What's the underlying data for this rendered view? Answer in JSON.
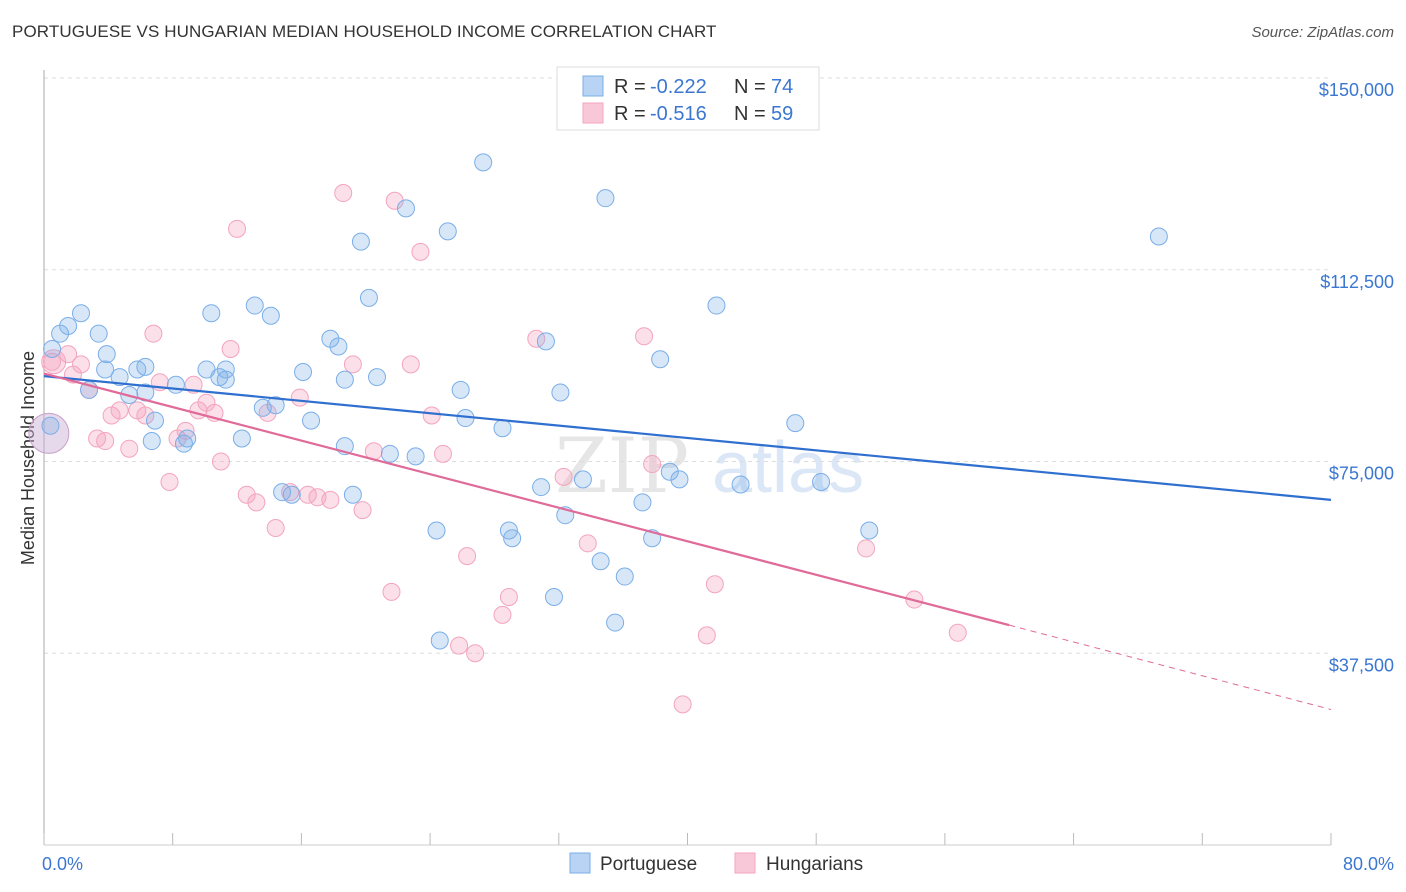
{
  "title": "PORTUGUESE VS HUNGARIAN MEDIAN HOUSEHOLD INCOME CORRELATION CHART",
  "source": "Source: ZipAtlas.com",
  "watermark": {
    "zip": "ZIP",
    "atlas": "atlas"
  },
  "legend": {
    "r_label": "R =",
    "n_label": "N =",
    "portuguese": {
      "r": "-0.222",
      "n": "74"
    },
    "hungarians": {
      "r": "-0.516",
      "n": "59"
    }
  },
  "chart_data": {
    "type": "scatter",
    "title": "PORTUGUESE VS HUNGARIAN MEDIAN HOUSEHOLD INCOME CORRELATION CHART",
    "ylabel": "Median Household Income",
    "xlabel": "",
    "xlim": [
      0,
      80
    ],
    "ylim": [
      0,
      160000
    ],
    "x_tick_labels": [
      "0.0%",
      "80.0%"
    ],
    "y_ticks": [
      37500,
      75000,
      112500,
      150000
    ],
    "y_tick_labels": [
      "$37,500",
      "$75,000",
      "$112,500",
      "$150,000"
    ],
    "grid": true,
    "legend_position": "top-center",
    "colors": {
      "portuguese": "#7aaee8",
      "hungarians": "#f4a4bf",
      "portuguese_line": "#2f6fcf",
      "hungarians_line": "#e06a98"
    },
    "series": [
      {
        "name": "Portuguese",
        "r": -0.222,
        "n": 74,
        "trend": {
          "x": [
            0,
            80
          ],
          "y": [
            91700,
            67500
          ]
        },
        "points": [
          [
            0.5,
            97000
          ],
          [
            1.0,
            100000
          ],
          [
            1.5,
            101500
          ],
          [
            2.3,
            104000
          ],
          [
            3.4,
            100000
          ],
          [
            3.9,
            96000
          ],
          [
            2.8,
            89000
          ],
          [
            3.8,
            93000
          ],
          [
            4.7,
            91500
          ],
          [
            5.3,
            88000
          ],
          [
            5.8,
            93000
          ],
          [
            6.3,
            93500
          ],
          [
            6.9,
            83000
          ],
          [
            6.7,
            79000
          ],
          [
            8.2,
            90000
          ],
          [
            8.7,
            78500
          ],
          [
            8.9,
            79500
          ],
          [
            10.1,
            93000
          ],
          [
            10.4,
            104000
          ],
          [
            10.9,
            91500
          ],
          [
            11.3,
            91000
          ],
          [
            12.3,
            79500
          ],
          [
            13.1,
            105500
          ],
          [
            13.6,
            85500
          ],
          [
            14.1,
            103500
          ],
          [
            14.4,
            86000
          ],
          [
            14.8,
            69000
          ],
          [
            15.4,
            68500
          ],
          [
            16.1,
            92500
          ],
          [
            16.6,
            83000
          ],
          [
            17.8,
            99000
          ],
          [
            18.3,
            97500
          ],
          [
            18.7,
            78000
          ],
          [
            19.2,
            68500
          ],
          [
            19.7,
            118000
          ],
          [
            20.2,
            107000
          ],
          [
            20.7,
            91500
          ],
          [
            21.5,
            76500
          ],
          [
            22.5,
            124500
          ],
          [
            23.1,
            76000
          ],
          [
            24.4,
            61500
          ],
          [
            24.6,
            40000
          ],
          [
            25.1,
            120000
          ],
          [
            25.9,
            89000
          ],
          [
            26.2,
            83500
          ],
          [
            27.3,
            133500
          ],
          [
            28.5,
            81500
          ],
          [
            28.9,
            61500
          ],
          [
            29.1,
            60000
          ],
          [
            30.9,
            70000
          ],
          [
            31.2,
            98500
          ],
          [
            31.7,
            48500
          ],
          [
            32.1,
            88500
          ],
          [
            32.4,
            64500
          ],
          [
            33.5,
            71500
          ],
          [
            34.6,
            55500
          ],
          [
            34.9,
            126500
          ],
          [
            35.5,
            43500
          ],
          [
            36.1,
            52500
          ],
          [
            37.2,
            67000
          ],
          [
            37.8,
            60000
          ],
          [
            38.3,
            95000
          ],
          [
            38.9,
            73000
          ],
          [
            39.5,
            71500
          ],
          [
            41.8,
            105500
          ],
          [
            43.3,
            70500
          ],
          [
            46.7,
            82500
          ],
          [
            48.3,
            71000
          ],
          [
            51.3,
            61500
          ],
          [
            69.3,
            119000
          ],
          [
            0.4,
            82000
          ],
          [
            6.3,
            88500
          ],
          [
            11.3,
            93000
          ],
          [
            18.7,
            91000
          ]
        ]
      },
      {
        "name": "Hungarians",
        "r": -0.516,
        "n": 59,
        "trend": {
          "x": [
            0,
            60
          ],
          "y": [
            92200,
            43000
          ],
          "dashed_to": {
            "x": 80,
            "y": 26500
          }
        },
        "points": [
          [
            0.5,
            94500
          ],
          [
            1.5,
            96000
          ],
          [
            1.8,
            92000
          ],
          [
            2.3,
            94000
          ],
          [
            2.8,
            89000
          ],
          [
            3.3,
            79500
          ],
          [
            3.8,
            79000
          ],
          [
            4.2,
            84000
          ],
          [
            4.7,
            85000
          ],
          [
            5.3,
            77500
          ],
          [
            5.8,
            85000
          ],
          [
            6.3,
            84000
          ],
          [
            6.8,
            100000
          ],
          [
            7.2,
            90500
          ],
          [
            7.8,
            71000
          ],
          [
            8.3,
            79500
          ],
          [
            8.8,
            81000
          ],
          [
            9.3,
            90000
          ],
          [
            9.6,
            85000
          ],
          [
            10.1,
            86500
          ],
          [
            10.6,
            84500
          ],
          [
            11.0,
            75000
          ],
          [
            11.6,
            97000
          ],
          [
            12.0,
            120500
          ],
          [
            12.6,
            68500
          ],
          [
            13.2,
            67000
          ],
          [
            13.9,
            84500
          ],
          [
            14.4,
            62000
          ],
          [
            15.3,
            69000
          ],
          [
            15.9,
            87500
          ],
          [
            16.4,
            68500
          ],
          [
            17.0,
            68000
          ],
          [
            17.8,
            67500
          ],
          [
            18.6,
            127500
          ],
          [
            19.2,
            94000
          ],
          [
            19.8,
            65500
          ],
          [
            20.5,
            77000
          ],
          [
            21.6,
            49500
          ],
          [
            21.8,
            126000
          ],
          [
            22.8,
            94000
          ],
          [
            23.4,
            116000
          ],
          [
            24.1,
            84000
          ],
          [
            24.8,
            76500
          ],
          [
            25.8,
            39000
          ],
          [
            26.3,
            56500
          ],
          [
            26.8,
            37500
          ],
          [
            28.5,
            45000
          ],
          [
            28.9,
            48500
          ],
          [
            30.6,
            99000
          ],
          [
            32.3,
            72000
          ],
          [
            33.8,
            59000
          ],
          [
            37.3,
            99500
          ],
          [
            37.8,
            74500
          ],
          [
            39.7,
            27500
          ],
          [
            41.2,
            41000
          ],
          [
            41.7,
            51000
          ],
          [
            51.1,
            58000
          ],
          [
            54.1,
            48000
          ],
          [
            56.8,
            41500
          ]
        ]
      }
    ]
  },
  "bottom_legend": {
    "portuguese": "Portuguese",
    "hungarians": "Hungarians"
  }
}
